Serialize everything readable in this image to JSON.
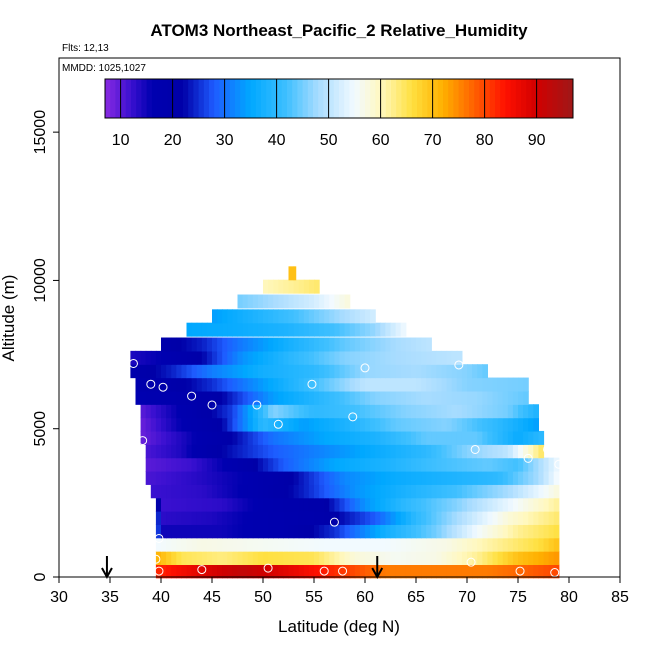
{
  "chart_data": {
    "type": "heatmap",
    "title": "ATOM3 Northeast_Pacific_2 Relative_Humidity",
    "flights_label": "Flts: 12,13",
    "dates_label": "MMDD: 1025,1027",
    "xlabel": "Latitude (deg N)",
    "ylabel": "Altitude (m)",
    "xlim": [
      30,
      85
    ],
    "ylim": [
      0,
      17500
    ],
    "x_ticks": [
      30,
      35,
      40,
      45,
      50,
      55,
      60,
      65,
      70,
      75,
      80,
      85
    ],
    "y_ticks": [
      0,
      5000,
      10000,
      15000
    ],
    "colorbar": {
      "range": [
        7,
        97
      ],
      "ticks": [
        10,
        20,
        30,
        40,
        50,
        60,
        70,
        80,
        90
      ],
      "stops": [
        {
          "v": 7,
          "color": "#8a2be2"
        },
        {
          "v": 12,
          "color": "#3a10d0"
        },
        {
          "v": 16,
          "color": "#0000b0"
        },
        {
          "v": 22,
          "color": "#0000a8"
        },
        {
          "v": 28,
          "color": "#1e5cff"
        },
        {
          "v": 35,
          "color": "#00a8ff"
        },
        {
          "v": 42,
          "color": "#40c0ff"
        },
        {
          "v": 48,
          "color": "#a8dcff"
        },
        {
          "v": 55,
          "color": "#f2faff"
        },
        {
          "v": 60,
          "color": "#fff8c0"
        },
        {
          "v": 66,
          "color": "#ffe040"
        },
        {
          "v": 72,
          "color": "#ffb000"
        },
        {
          "v": 78,
          "color": "#ff6000"
        },
        {
          "v": 84,
          "color": "#ff1000"
        },
        {
          "v": 90,
          "color": "#d00000"
        },
        {
          "v": 97,
          "color": "#a01818"
        }
      ]
    },
    "grid": [
      {
        "alt": 200,
        "lat_min": 39.5,
        "lat_max": 79,
        "rh": [
          [
            39.5,
            82
          ],
          [
            44,
            88
          ],
          [
            48,
            92
          ],
          [
            52,
            88
          ],
          [
            57,
            82
          ],
          [
            62,
            76
          ],
          [
            67,
            76
          ],
          [
            72,
            76
          ],
          [
            76,
            78
          ],
          [
            79,
            80
          ]
        ]
      },
      {
        "alt": 650,
        "lat_min": 39.5,
        "lat_max": 79,
        "rh": [
          [
            39.5,
            72
          ],
          [
            42,
            65
          ],
          [
            46,
            63
          ],
          [
            50,
            66
          ],
          [
            55,
            65
          ],
          [
            59,
            58
          ],
          [
            63,
            56
          ],
          [
            67,
            57
          ],
          [
            71,
            62
          ],
          [
            75,
            70
          ],
          [
            79,
            74
          ]
        ]
      },
      {
        "alt": 1100,
        "lat_min": 39.5,
        "lat_max": 79,
        "rh": [
          [
            39.5,
            55
          ],
          [
            44,
            57
          ],
          [
            50,
            56
          ],
          [
            56,
            55
          ],
          [
            62,
            55
          ],
          [
            68,
            57
          ],
          [
            73,
            62
          ],
          [
            77,
            66
          ],
          [
            79,
            70
          ]
        ]
      },
      {
        "alt": 1550,
        "lat_min": 39.5,
        "lat_max": 79,
        "rh": [
          [
            39.5,
            36
          ],
          [
            40,
            15
          ],
          [
            46,
            15
          ],
          [
            52,
            18
          ],
          [
            57,
            25
          ],
          [
            62,
            37
          ],
          [
            67,
            45
          ],
          [
            71,
            55
          ],
          [
            75,
            62
          ],
          [
            79,
            66
          ]
        ]
      },
      {
        "alt": 2000,
        "lat_min": 39.5,
        "lat_max": 79,
        "rh": [
          [
            39.5,
            36
          ],
          [
            40,
            13
          ],
          [
            45,
            14
          ],
          [
            50,
            17
          ],
          [
            56,
            20
          ],
          [
            61,
            28
          ],
          [
            65,
            40
          ],
          [
            70,
            50
          ],
          [
            74,
            58
          ],
          [
            79,
            64
          ]
        ]
      },
      {
        "alt": 2450,
        "lat_min": 39.5,
        "lat_max": 79,
        "rh": [
          [
            39.5,
            30
          ],
          [
            40,
            12
          ],
          [
            46,
            13
          ],
          [
            51,
            18
          ],
          [
            56,
            21
          ],
          [
            60,
            33
          ],
          [
            64,
            40
          ],
          [
            69,
            46
          ],
          [
            74,
            54
          ],
          [
            79,
            62
          ]
        ]
      },
      {
        "alt": 2900,
        "lat_min": 39,
        "lat_max": 79,
        "rh": [
          [
            39,
            12
          ],
          [
            44,
            13
          ],
          [
            49,
            17
          ],
          [
            54,
            24
          ],
          [
            59,
            33
          ],
          [
            64,
            38
          ],
          [
            69,
            42
          ],
          [
            74,
            48
          ],
          [
            79,
            58
          ]
        ]
      },
      {
        "alt": 3350,
        "lat_min": 38.5,
        "lat_max": 79,
        "rh": [
          [
            38.5,
            11
          ],
          [
            43,
            13
          ],
          [
            48,
            16
          ],
          [
            53,
            22
          ],
          [
            58,
            32
          ],
          [
            63,
            36
          ],
          [
            68,
            38
          ],
          [
            73,
            40
          ],
          [
            77,
            48
          ],
          [
            79,
            56
          ]
        ]
      },
      {
        "alt": 3800,
        "lat_min": 38.5,
        "lat_max": 79,
        "rh": [
          [
            38.5,
            10
          ],
          [
            43,
            12
          ],
          [
            47,
            17
          ],
          [
            52,
            28
          ],
          [
            57,
            35
          ],
          [
            62,
            38
          ],
          [
            67,
            42
          ],
          [
            72,
            44
          ],
          [
            75,
            42
          ],
          [
            77,
            48
          ],
          [
            79,
            55
          ]
        ]
      },
      {
        "alt": 4250,
        "lat_min": 38.5,
        "lat_max": 77.5,
        "rh": [
          [
            38.5,
            11
          ],
          [
            42,
            14
          ],
          [
            46,
            22
          ],
          [
            51,
            28
          ],
          [
            56,
            32
          ],
          [
            61,
            36
          ],
          [
            66,
            40
          ],
          [
            70,
            46
          ],
          [
            74,
            50
          ],
          [
            77.5,
            65
          ]
        ]
      },
      {
        "alt": 4700,
        "lat_min": 38,
        "lat_max": 77.5,
        "rh": [
          [
            38,
            9
          ],
          [
            42,
            14
          ],
          [
            46,
            20
          ],
          [
            51,
            30
          ],
          [
            56,
            35
          ],
          [
            61,
            38
          ],
          [
            66,
            44
          ],
          [
            71,
            44
          ],
          [
            75,
            36
          ],
          [
            77.5,
            40
          ]
        ]
      },
      {
        "alt": 5150,
        "lat_min": 38,
        "lat_max": 77,
        "rh": [
          [
            38,
            9
          ],
          [
            42,
            16
          ],
          [
            46,
            22
          ],
          [
            50,
            40
          ],
          [
            54,
            34
          ],
          [
            58,
            38
          ],
          [
            63,
            44
          ],
          [
            68,
            46
          ],
          [
            73,
            40
          ],
          [
            77,
            34
          ]
        ]
      },
      {
        "alt": 5600,
        "lat_min": 38,
        "lat_max": 77,
        "rh": [
          [
            38,
            10
          ],
          [
            43,
            18
          ],
          [
            47,
            26
          ],
          [
            51,
            46
          ],
          [
            55,
            40
          ],
          [
            59,
            42
          ],
          [
            64,
            46
          ],
          [
            69,
            48
          ],
          [
            74,
            45
          ],
          [
            77,
            38
          ]
        ]
      },
      {
        "alt": 6050,
        "lat_min": 37.5,
        "lat_max": 76,
        "rh": [
          [
            37.5,
            16
          ],
          [
            42,
            18
          ],
          [
            46,
            22
          ],
          [
            51,
            34
          ],
          [
            56,
            40
          ],
          [
            61,
            46
          ],
          [
            66,
            48
          ],
          [
            71,
            47
          ],
          [
            76,
            44
          ]
        ]
      },
      {
        "alt": 6500,
        "lat_min": 37.5,
        "lat_max": 76,
        "rh": [
          [
            37.5,
            18
          ],
          [
            41,
            20
          ],
          [
            45,
            25
          ],
          [
            50,
            34
          ],
          [
            55,
            42
          ],
          [
            60,
            50
          ],
          [
            65,
            50
          ],
          [
            70,
            46
          ],
          [
            76,
            45
          ]
        ]
      },
      {
        "alt": 6950,
        "lat_min": 37,
        "lat_max": 72,
        "rh": [
          [
            37,
            19
          ],
          [
            41,
            24
          ],
          [
            45,
            31
          ],
          [
            50,
            37
          ],
          [
            55,
            40
          ],
          [
            60,
            47
          ],
          [
            65,
            48
          ],
          [
            70,
            46
          ],
          [
            72,
            44
          ]
        ]
      },
      {
        "alt": 7400,
        "lat_min": 37,
        "lat_max": 69.5,
        "rh": [
          [
            37,
            14
          ],
          [
            40,
            16
          ],
          [
            44,
            22
          ],
          [
            48,
            33
          ],
          [
            53,
            40
          ],
          [
            58,
            46
          ],
          [
            63,
            48
          ],
          [
            69.5,
            50
          ]
        ]
      },
      {
        "alt": 7850,
        "lat_min": 40,
        "lat_max": 66.5,
        "rh": [
          [
            40,
            20
          ],
          [
            44,
            24
          ],
          [
            48,
            31
          ],
          [
            53,
            38
          ],
          [
            58,
            44
          ],
          [
            63,
            48
          ],
          [
            66.5,
            50
          ]
        ]
      },
      {
        "alt": 8350,
        "lat_min": 42.5,
        "lat_max": 64,
        "rh": [
          [
            42.5,
            35
          ],
          [
            47,
            36
          ],
          [
            52,
            38
          ],
          [
            57,
            42
          ],
          [
            61,
            47
          ],
          [
            64,
            55
          ]
        ]
      },
      {
        "alt": 8800,
        "lat_min": 45,
        "lat_max": 61,
        "rh": [
          [
            45,
            34
          ],
          [
            49,
            38
          ],
          [
            53,
            42
          ],
          [
            57,
            47
          ],
          [
            61,
            52
          ]
        ]
      },
      {
        "alt": 9300,
        "lat_min": 47.5,
        "lat_max": 58.5,
        "rh": [
          [
            47.5,
            45
          ],
          [
            51,
            48
          ],
          [
            55,
            52
          ],
          [
            58.5,
            58
          ]
        ]
      },
      {
        "alt": 9800,
        "lat_min": 50,
        "lat_max": 55.5,
        "rh": [
          [
            50,
            60
          ],
          [
            53,
            62
          ],
          [
            55.5,
            64
          ]
        ]
      },
      {
        "alt": 10250,
        "lat_min": 52.5,
        "lat_max": 53.2,
        "rh": [
          [
            52.5,
            70
          ],
          [
            53.2,
            70
          ]
        ]
      }
    ],
    "samples": [
      {
        "lat": 37.3,
        "alt": 7200
      },
      {
        "lat": 39.0,
        "alt": 6500
      },
      {
        "lat": 40.2,
        "alt": 6400
      },
      {
        "lat": 43.0,
        "alt": 6100
      },
      {
        "lat": 45.0,
        "alt": 5800
      },
      {
        "lat": 49.4,
        "alt": 5800
      },
      {
        "lat": 54.8,
        "alt": 6500
      },
      {
        "lat": 60.0,
        "alt": 7050
      },
      {
        "lat": 69.2,
        "alt": 7150
      },
      {
        "lat": 58.8,
        "alt": 5400
      },
      {
        "lat": 51.5,
        "alt": 5150
      },
      {
        "lat": 38.2,
        "alt": 4600
      },
      {
        "lat": 70.8,
        "alt": 4300
      },
      {
        "lat": 76.0,
        "alt": 4000
      },
      {
        "lat": 77.9,
        "alt": 4300
      },
      {
        "lat": 79.0,
        "alt": 3800
      },
      {
        "lat": 57.0,
        "alt": 1850
      },
      {
        "lat": 39.8,
        "alt": 1300
      },
      {
        "lat": 39.5,
        "alt": 600
      },
      {
        "lat": 39.8,
        "alt": 200
      },
      {
        "lat": 44.0,
        "alt": 250
      },
      {
        "lat": 50.5,
        "alt": 300
      },
      {
        "lat": 56.0,
        "alt": 200
      },
      {
        "lat": 57.8,
        "alt": 200
      },
      {
        "lat": 70.4,
        "alt": 500
      },
      {
        "lat": 75.2,
        "alt": 200
      },
      {
        "lat": 78.6,
        "alt": 150
      }
    ],
    "arrows": [
      34.7,
      61.2
    ]
  }
}
